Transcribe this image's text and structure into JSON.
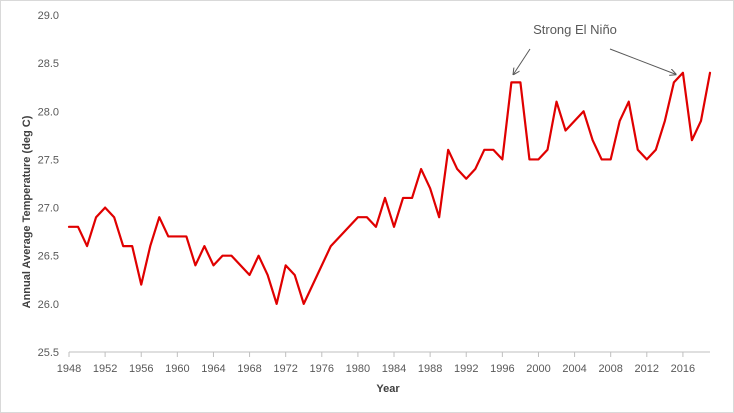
{
  "chart_data": {
    "type": "line",
    "title": "",
    "xlabel": "Year",
    "ylabel": "Annual Average Temperature (deg C)",
    "xlim": [
      1948,
      2019
    ],
    "ylim": [
      25.5,
      29.0
    ],
    "y_ticks": [
      "25.5",
      "26.0",
      "26.5",
      "27.0",
      "27.5",
      "28.0",
      "28.5",
      "29.0"
    ],
    "x_ticks": [
      "1948",
      "1952",
      "1956",
      "1960",
      "1964",
      "1968",
      "1972",
      "1976",
      "1980",
      "1984",
      "1988",
      "1992",
      "1996",
      "2000",
      "2004",
      "2008",
      "2012",
      "2016"
    ],
    "grid": false,
    "line_color": "#e00000",
    "series": [
      {
        "points": [
          [
            1948,
            26.8
          ],
          [
            1949,
            26.8
          ],
          [
            1950,
            26.6
          ],
          [
            1951,
            26.9
          ],
          [
            1952,
            27.0
          ],
          [
            1953,
            26.9
          ],
          [
            1954,
            26.6
          ],
          [
            1955,
            26.6
          ],
          [
            1956,
            26.2
          ],
          [
            1957,
            26.6
          ],
          [
            1958,
            26.9
          ],
          [
            1959,
            26.7
          ],
          [
            1960,
            26.7
          ],
          [
            1961,
            26.7
          ],
          [
            1962,
            26.4
          ],
          [
            1963,
            26.6
          ],
          [
            1964,
            26.4
          ],
          [
            1965,
            26.5
          ],
          [
            1966,
            26.5
          ],
          [
            1967,
            26.4
          ],
          [
            1968,
            26.3
          ],
          [
            1969,
            26.5
          ],
          [
            1970,
            26.3
          ],
          [
            1971,
            26.0
          ],
          [
            1972,
            26.4
          ],
          [
            1973,
            26.3
          ],
          [
            1974,
            26.0
          ],
          [
            1977,
            26.6
          ],
          [
            1980,
            26.9
          ],
          [
            1981,
            26.9
          ],
          [
            1982,
            26.8
          ],
          [
            1983,
            27.1
          ],
          [
            1984,
            26.8
          ],
          [
            1985,
            27.1
          ],
          [
            1986,
            27.1
          ],
          [
            1987,
            27.4
          ],
          [
            1988,
            27.2
          ],
          [
            1989,
            26.9
          ],
          [
            1990,
            27.6
          ],
          [
            1991,
            27.4
          ],
          [
            1992,
            27.3
          ],
          [
            1993,
            27.4
          ],
          [
            1994,
            27.6
          ],
          [
            1995,
            27.6
          ],
          [
            1996,
            27.5
          ],
          [
            1997,
            28.3
          ],
          [
            1998,
            28.3
          ],
          [
            1999,
            27.5
          ],
          [
            2000,
            27.5
          ],
          [
            2001,
            27.6
          ],
          [
            2002,
            28.1
          ],
          [
            2003,
            27.8
          ],
          [
            2004,
            27.9
          ],
          [
            2005,
            28.0
          ],
          [
            2006,
            27.7
          ],
          [
            2007,
            27.5
          ],
          [
            2008,
            27.5
          ],
          [
            2009,
            27.9
          ],
          [
            2010,
            28.1
          ],
          [
            2011,
            27.6
          ],
          [
            2012,
            27.5
          ],
          [
            2013,
            27.6
          ],
          [
            2014,
            27.9
          ],
          [
            2015,
            28.3
          ],
          [
            2016,
            28.4
          ],
          [
            2017,
            27.7
          ],
          [
            2018,
            27.9
          ],
          [
            2019,
            28.4
          ]
        ]
      }
    ],
    "annotations": [
      {
        "text": "Strong El Niño",
        "targets": [
          [
            1997,
            28.3
          ],
          [
            2015,
            28.3
          ]
        ]
      }
    ]
  }
}
